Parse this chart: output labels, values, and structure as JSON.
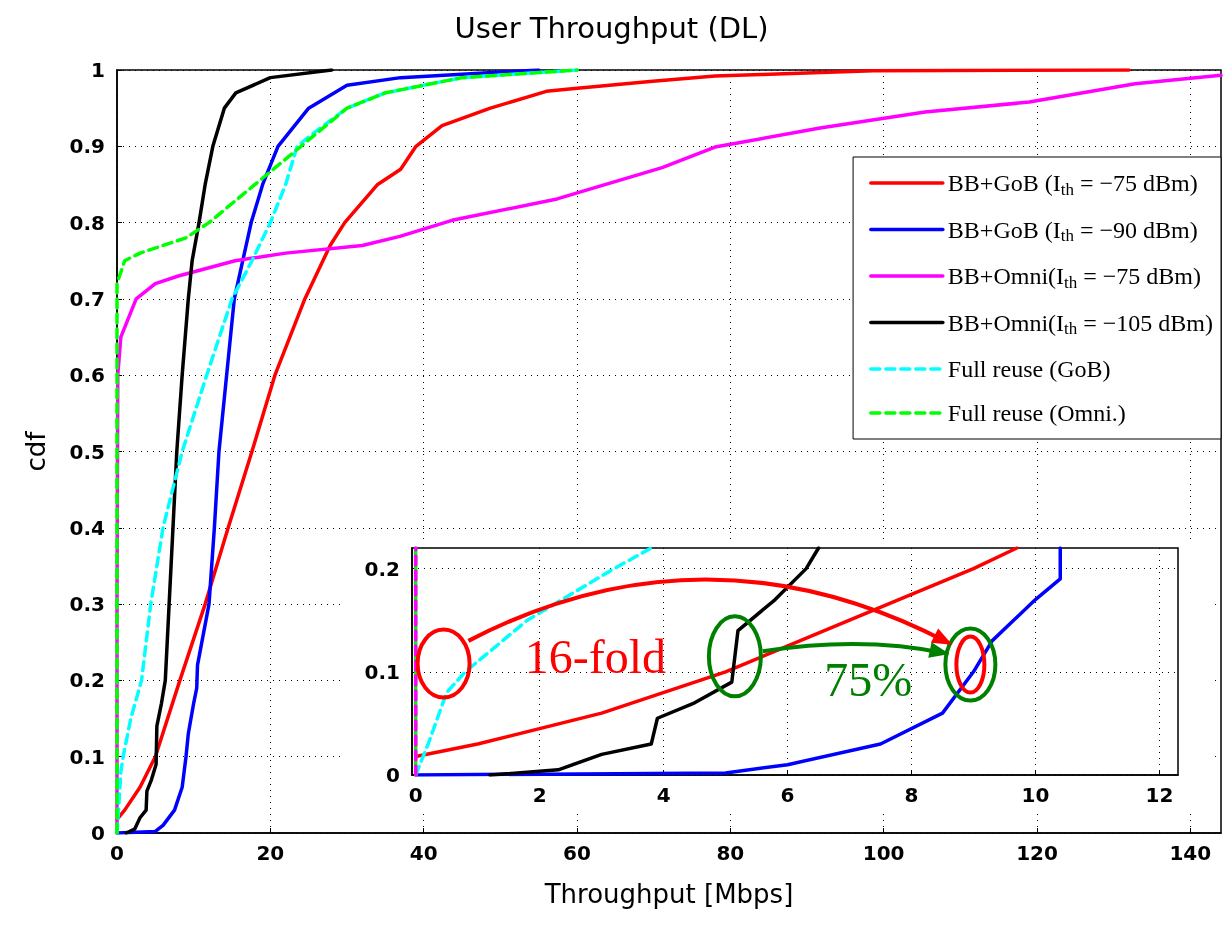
{
  "chart_data": [
    {
      "type": "line",
      "title": "User Throughput (DL)",
      "xlabel": "Throughput [Mbps]",
      "ylabel": "cdf",
      "xlim": [
        0,
        144
      ],
      "ylim": [
        0,
        1
      ],
      "xticks": [
        0,
        20,
        40,
        60,
        80,
        100,
        120,
        140
      ],
      "yticks": [
        0,
        0.1,
        0.2,
        0.3,
        0.4,
        0.5,
        0.6,
        0.7,
        0.8,
        0.9,
        1
      ],
      "grid": true,
      "legend": "right",
      "marker": "none",
      "line_style": "solid",
      "series": [
        {
          "name": "BB+GoB (I$_{th}$ = −75 dBm)",
          "color": "#ff0000",
          "x": [
            0,
            1,
            3,
            5,
            8.2,
            11.5,
            14.5,
            17.6,
            20.6,
            24.5,
            27.8,
            29.7,
            34,
            37,
            39,
            42.4,
            48.7,
            56,
            59,
            69.5,
            78,
            84,
            98.6,
            132
          ],
          "values": [
            0.018,
            0.03,
            0.06,
            0.1,
            0.2,
            0.3,
            0.4,
            0.5,
            0.6,
            0.7,
            0.77,
            0.8,
            0.85,
            0.87,
            0.9,
            0.927,
            0.95,
            0.972,
            0.975,
            0.985,
            0.992,
            0.994,
            0.999,
            1
          ]
        },
        {
          "name": "BB+GoB (I$_{th}$ = −90 dBm)",
          "color": "#0000ff",
          "x": [
            0,
            5,
            6,
            7.5,
            8.5,
            9,
            9.3,
            10,
            10.4,
            10.5,
            12,
            12.7,
            13.3,
            14.3,
            15.3,
            17.5,
            19,
            21,
            25,
            30,
            37,
            55
          ],
          "values": [
            0,
            0.002,
            0.01,
            0.03,
            0.06,
            0.1,
            0.13,
            0.17,
            0.19,
            0.22,
            0.3,
            0.4,
            0.5,
            0.6,
            0.7,
            0.8,
            0.85,
            0.9,
            0.95,
            0.98,
            0.99,
            1
          ]
        },
        {
          "name": "BB+Omni(I$_{th}$ = −75 dBm)",
          "color": "#ff00ff",
          "x": [
            0,
            0,
            0.1,
            0.5,
            2.5,
            5,
            8,
            15.4,
            22,
            32,
            36.9,
            43.7,
            57.4,
            71.1,
            78,
            91.7,
            105.4,
            119,
            132.8,
            144
          ],
          "values": [
            0,
            0.3,
            0.6,
            0.65,
            0.7,
            0.72,
            0.73,
            0.75,
            0.76,
            0.77,
            0.782,
            0.803,
            0.831,
            0.872,
            0.899,
            0.924,
            0.945,
            0.958,
            0.982,
            0.993
          ]
        },
        {
          "name": "BB+Omni(I$_{th}$ = −105 dBm)",
          "color": "#000000",
          "x": [
            1.2,
            2.3,
            3,
            3.8,
            3.9,
            4.5,
            5.1,
            5.2,
            5.8,
            6.3,
            6.8,
            7.3,
            7.8,
            8.5,
            9.3,
            9.8,
            10.7,
            11.5,
            12.5,
            14,
            15.5,
            20,
            28
          ],
          "values": [
            0,
            0.005,
            0.02,
            0.03,
            0.055,
            0.07,
            0.09,
            0.14,
            0.17,
            0.2,
            0.3,
            0.4,
            0.5,
            0.6,
            0.7,
            0.75,
            0.8,
            0.85,
            0.9,
            0.95,
            0.97,
            0.99,
            1
          ]
        },
        {
          "name": "Full reuse (GoB)",
          "color": "#00ffff",
          "line_style": "dashed",
          "x": [
            0,
            0.2,
            0.5,
            0.8,
            1.8,
            3.2,
            4.4,
            6,
            8.5,
            11.7,
            15,
            17.6,
            20,
            22,
            23.5,
            26,
            30,
            35,
            45,
            60
          ],
          "values": [
            0,
            0.03,
            0.08,
            0.1,
            0.15,
            0.2,
            0.3,
            0.4,
            0.5,
            0.6,
            0.7,
            0.75,
            0.8,
            0.85,
            0.9,
            0.92,
            0.95,
            0.97,
            0.99,
            1
          ]
        },
        {
          "name": "Full reuse (Omni.)",
          "color": "#00ff00",
          "line_style": "dashed",
          "x": [
            0,
            0,
            1,
            3,
            6,
            9,
            12,
            18,
            24,
            30,
            35,
            45,
            60
          ],
          "values": [
            0,
            0.72,
            0.75,
            0.76,
            0.77,
            0.78,
            0.8,
            0.85,
            0.9,
            0.95,
            0.97,
            0.99,
            1
          ]
        }
      ]
    },
    {
      "type": "line",
      "xlim": [
        -0.06,
        12.3
      ],
      "ylim": [
        0,
        0.22
      ],
      "xticks": [
        0,
        2,
        4,
        6,
        8,
        10,
        12
      ],
      "yticks": [
        0,
        0.1,
        0.2
      ],
      "grid": true,
      "marker": "none",
      "line_style": "solid",
      "annotations": [
        "16-fold",
        "75%"
      ],
      "series": [
        {
          "color": "#ff0000",
          "x": [
            0,
            1,
            3,
            5,
            7,
            9,
            9.7
          ],
          "values": [
            0.018,
            0.03,
            0.06,
            0.1,
            0.15,
            0.2,
            0.22
          ]
        },
        {
          "color": "#0000ff",
          "x": [
            0,
            5,
            6,
            7.5,
            8.5,
            9,
            9.3,
            10,
            10.4,
            10.4
          ],
          "values": [
            0,
            0.002,
            0.01,
            0.03,
            0.06,
            0.1,
            0.13,
            0.17,
            0.19,
            0.22
          ]
        },
        {
          "color": "#000000",
          "x": [
            1.2,
            2.3,
            3,
            3.8,
            3.9,
            4.5,
            5.1,
            5.2,
            5.8,
            6.3,
            6.5
          ],
          "values": [
            0,
            0.005,
            0.02,
            0.03,
            0.055,
            0.07,
            0.09,
            0.14,
            0.17,
            0.2,
            0.22
          ]
        },
        {
          "color": "#00ffff",
          "line_style": "dashed",
          "x": [
            0,
            0.2,
            0.5,
            0.8,
            1.8,
            3.2,
            3.8
          ],
          "values": [
            0,
            0.03,
            0.08,
            0.1,
            0.15,
            0.2,
            0.22
          ]
        },
        {
          "color": "#00ff00",
          "x": [
            0,
            0
          ],
          "values": [
            0,
            0.22
          ]
        },
        {
          "color": "#ff00ff",
          "line_style": "dashed",
          "x": [
            0,
            0
          ],
          "values": [
            0,
            0.22
          ]
        }
      ]
    }
  ]
}
